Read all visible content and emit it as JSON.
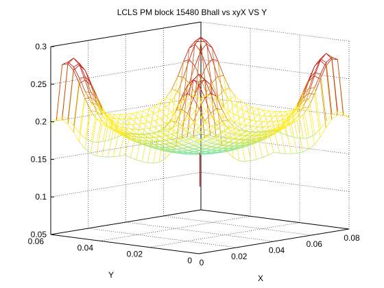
{
  "chart_data": {
    "type": "surface-mesh",
    "title": "LCLS PM block 15480 Bhall vs xyX VS Y",
    "xlabel": "X",
    "ylabel": "Y",
    "zlabel": "",
    "xlim": [
      0,
      0.08
    ],
    "ylim": [
      0,
      0.06
    ],
    "zlim": [
      0.05,
      0.3
    ],
    "xticks": [
      "0",
      "0.02",
      "0.04",
      "0.06",
      "0.08"
    ],
    "yticks": [
      "0",
      "0.02",
      "0.04",
      "0.06"
    ],
    "zticks": [
      "0.05",
      "0.1",
      "0.15",
      "0.2",
      "0.25",
      "0.3"
    ],
    "grid": true,
    "colormap": "hot-jet (cyan at low values, yellow mid, red at high values)",
    "surface_summary": {
      "center_minimum": 0.155,
      "corner_peaks": 0.26,
      "front_edge_values_near_corners": 0.14,
      "spike_min_near_center": 0.11
    }
  }
}
